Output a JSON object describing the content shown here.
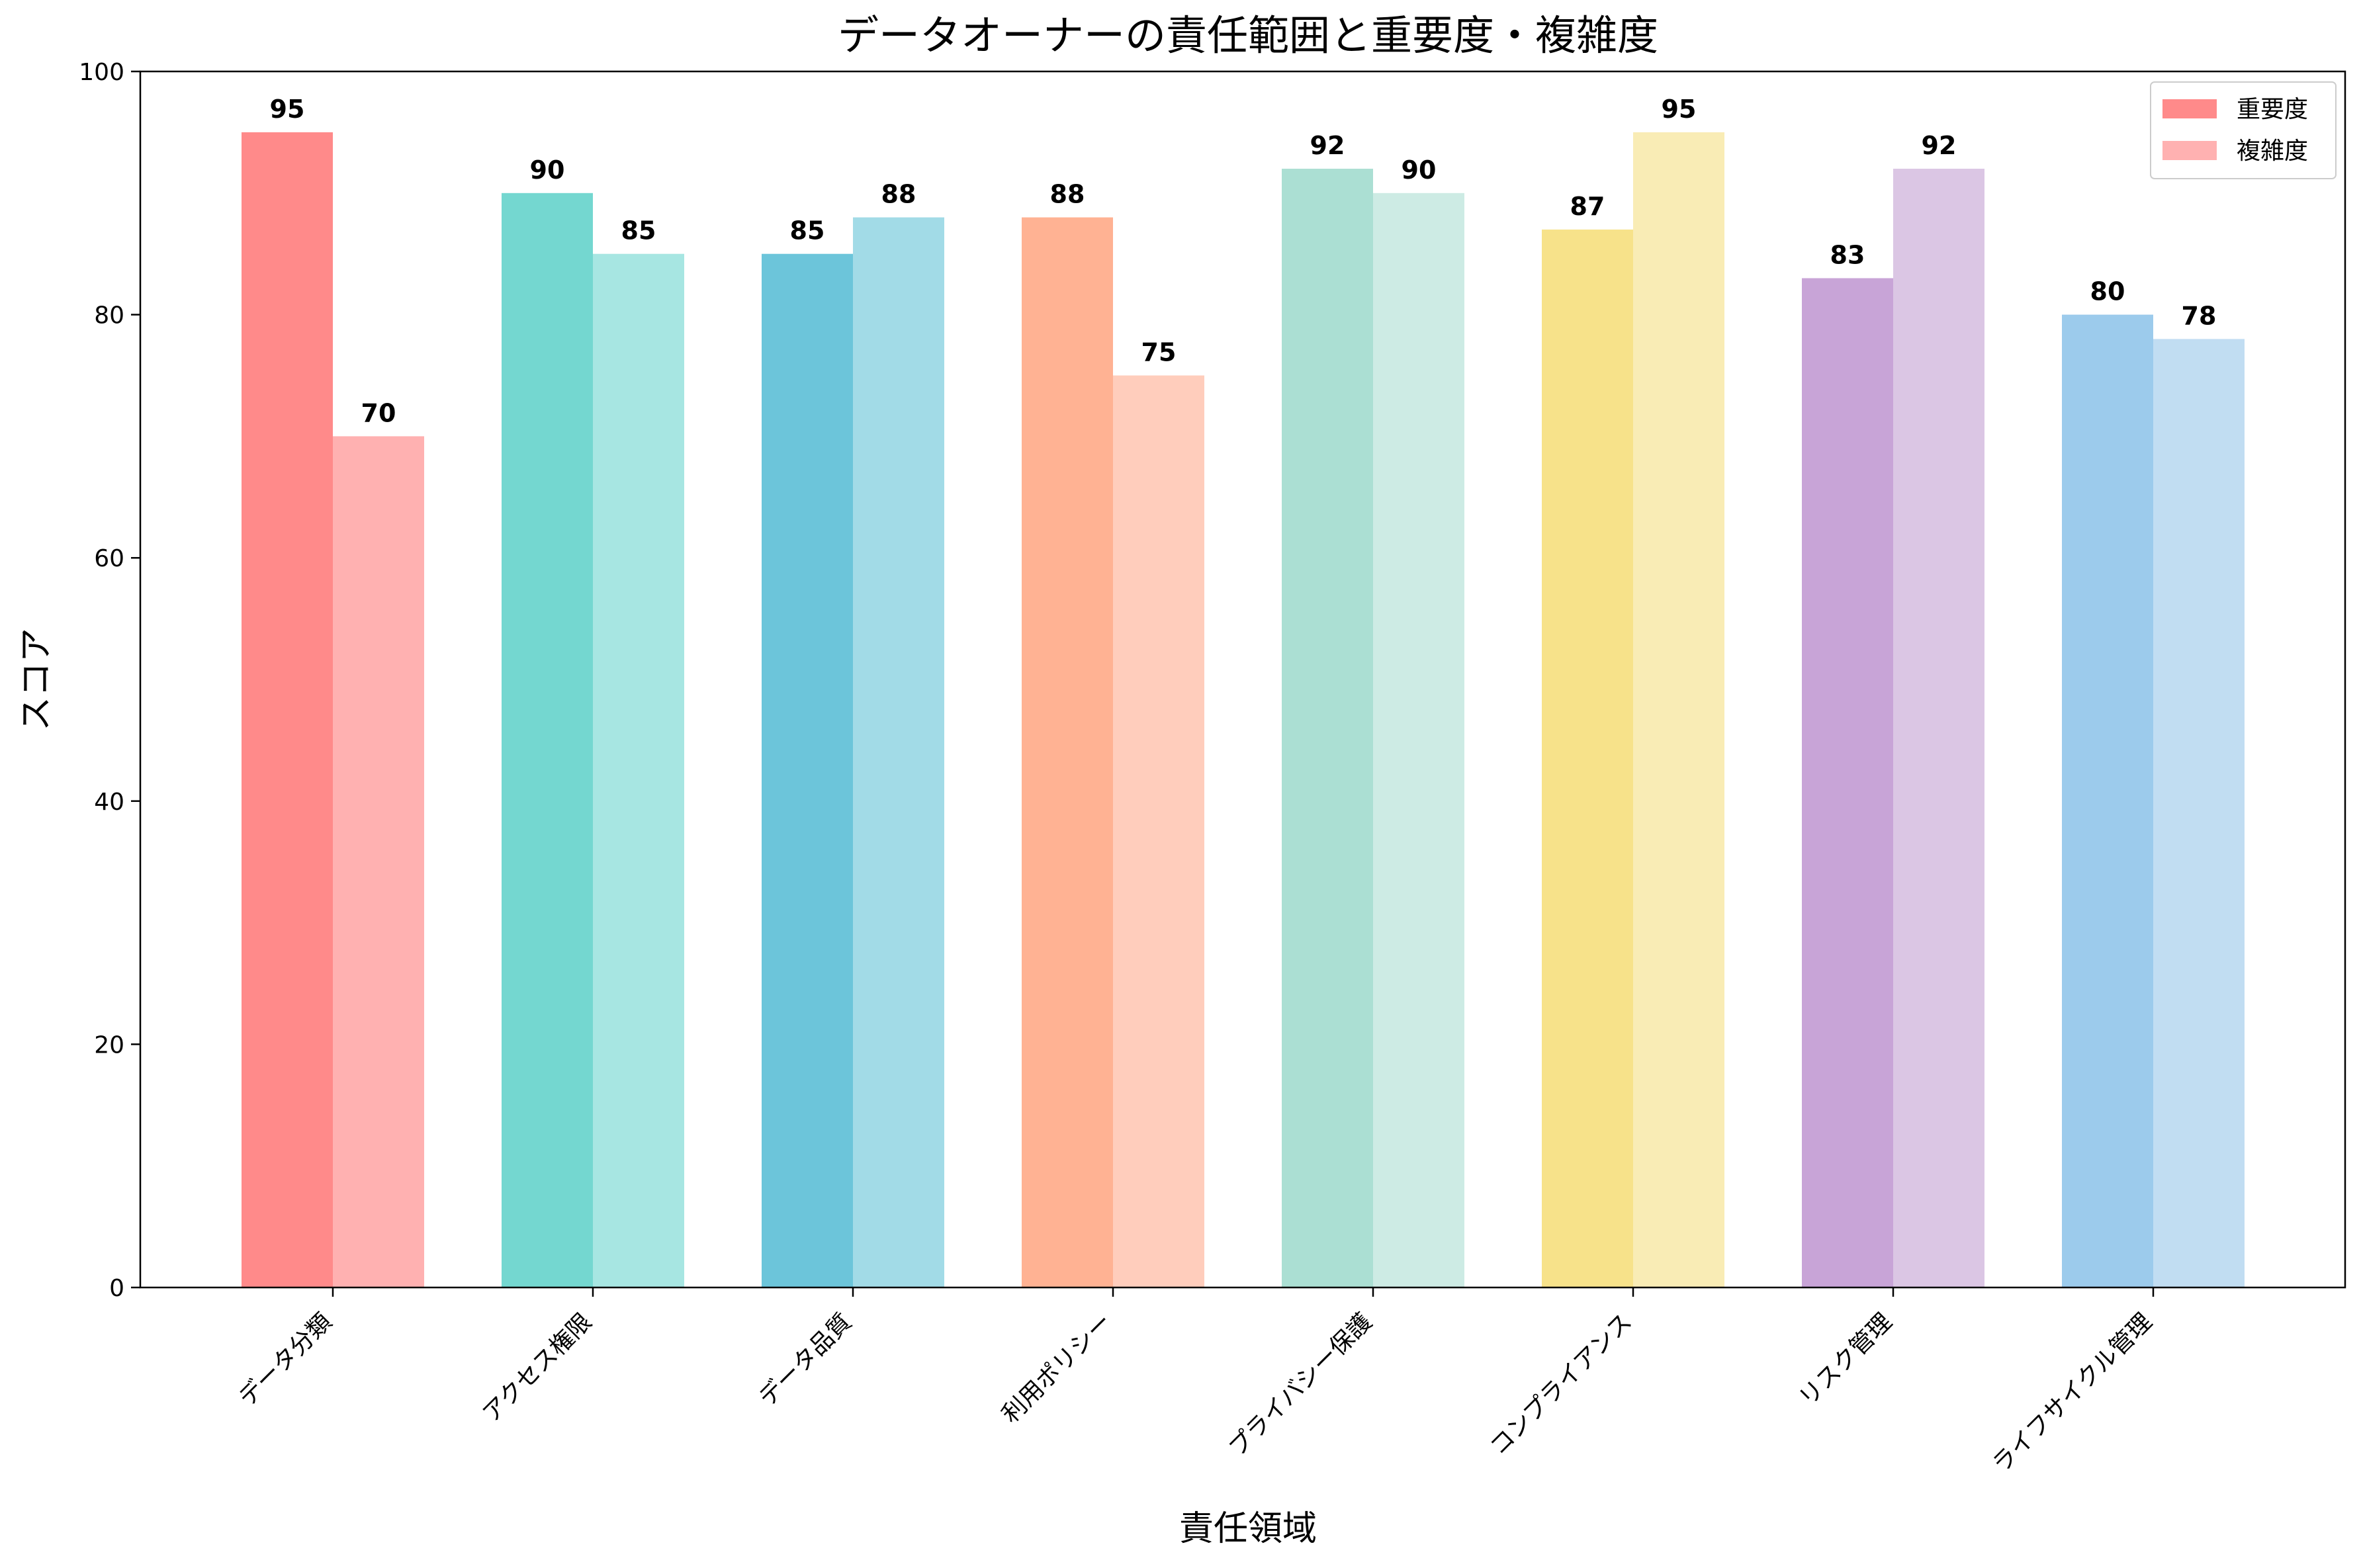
{
  "chart_data": {
    "type": "bar",
    "title": "データオーナーの責任範囲と重要度・複雑度",
    "xlabel": "責任領域",
    "ylabel": "スコア",
    "ylim": [
      0,
      100
    ],
    "yticks": [
      0,
      20,
      40,
      60,
      80,
      100
    ],
    "grid": false,
    "legend_position": "top-right",
    "categories": [
      "データ分類",
      "アクセス権限",
      "データ品質",
      "利用ポリシー",
      "プライバシー保護",
      "コンプライアンス",
      "リスク管理",
      "ライフサイクル管理"
    ],
    "series": [
      {
        "name": "重要度",
        "values": [
          95,
          90,
          85,
          88,
          92,
          87,
          83,
          80
        ],
        "colors": [
          "#ff8a8a",
          "#74d7d0",
          "#6cc5da",
          "#ffb293",
          "#abdfd3",
          "#f7e28a",
          "#c8a4d7",
          "#9ccbec"
        ],
        "legend_color": "#ff8a8a"
      },
      {
        "name": "複雑度",
        "values": [
          70,
          85,
          88,
          75,
          90,
          95,
          92,
          78
        ],
        "colors": [
          "#ffb1b1",
          "#a7e6e2",
          "#a2dbe7",
          "#ffcdbc",
          "#cdebe4",
          "#f9ecb5",
          "#dbc6e4",
          "#c1ddf2"
        ],
        "legend_color": "#ffb1b1"
      }
    ]
  }
}
